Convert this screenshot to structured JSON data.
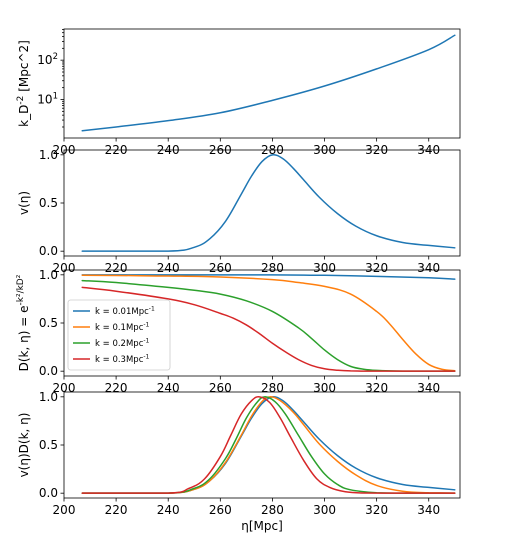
{
  "chart_data": [
    {
      "type": "line",
      "ylabel": "k_D^{-2} [Mpc^2]",
      "ylog": true,
      "xlim": [
        200,
        352
      ],
      "ylim": [
        1.05,
        620
      ],
      "xticks": [
        200,
        220,
        240,
        260,
        280,
        300,
        320,
        340
      ],
      "xtick_labels": [
        "200",
        "220",
        "240",
        "260",
        "280",
        "300",
        "320",
        "340"
      ],
      "yticks": [
        10,
        100
      ],
      "ytick_labels": [
        "10^1",
        "10^2"
      ],
      "grid": false,
      "series": [
        {
          "color": "#1f77b4",
          "x": [
            207,
            220,
            240,
            260,
            280,
            300,
            320,
            340,
            350
          ],
          "y": [
            1.6,
            2.0,
            2.9,
            4.6,
            9.5,
            22,
            60,
            185,
            430
          ]
        }
      ]
    },
    {
      "type": "line",
      "ylabel": "v(η)",
      "xlim": [
        200,
        352
      ],
      "ylim": [
        -0.05,
        1.05
      ],
      "xticks": [
        200,
        220,
        240,
        260,
        280,
        300,
        320,
        340
      ],
      "xtick_labels": [
        "200",
        "220",
        "240",
        "260",
        "280",
        "300",
        "320",
        "340"
      ],
      "yticks": [
        0.0,
        0.5,
        1.0
      ],
      "ytick_labels": [
        "0.0",
        "0.5",
        "1.0"
      ],
      "grid": false,
      "series": [
        {
          "color": "#1f77b4",
          "x": [
            207,
            240,
            250,
            256,
            262,
            268,
            272,
            276,
            280,
            284,
            288,
            292,
            298,
            305,
            312,
            320,
            330,
            340,
            350
          ],
          "y": [
            0.0,
            0.0,
            0.04,
            0.13,
            0.31,
            0.59,
            0.78,
            0.93,
            1.0,
            0.96,
            0.86,
            0.74,
            0.56,
            0.39,
            0.26,
            0.16,
            0.09,
            0.06,
            0.035
          ]
        }
      ]
    },
    {
      "type": "line",
      "ylabel": "D(k, η) = e^{-k²/k_D²}",
      "xlim": [
        200,
        352
      ],
      "ylim": [
        -0.05,
        1.05
      ],
      "xticks": [
        200,
        220,
        240,
        260,
        280,
        300,
        320,
        340
      ],
      "xtick_labels": [
        "200",
        "220",
        "240",
        "260",
        "280",
        "300",
        "320",
        "340"
      ],
      "yticks": [
        0.0,
        0.5,
        1.0
      ],
      "ytick_labels": [
        "0.0",
        "0.5",
        "1.0"
      ],
      "grid": false,
      "legend": "center-left",
      "series": [
        {
          "name": "k = 0.01Mpc^{-1}",
          "color": "#1f77b4",
          "x": [
            207,
            240,
            280,
            300,
            320,
            340,
            350
          ],
          "y": [
            0.9999,
            0.9997,
            0.999,
            0.995,
            0.984,
            0.97,
            0.955
          ]
        },
        {
          "name": "k = 0.1Mpc^{-1}",
          "color": "#ff7f0e",
          "x": [
            207,
            220,
            240,
            260,
            280,
            290,
            300,
            310,
            320,
            325,
            330,
            335,
            340,
            345,
            350
          ],
          "y": [
            0.995,
            0.993,
            0.988,
            0.978,
            0.95,
            0.92,
            0.88,
            0.8,
            0.62,
            0.49,
            0.33,
            0.18,
            0.07,
            0.02,
            0.005
          ]
        },
        {
          "name": "k = 0.2Mpc^{-1}",
          "color": "#2ca02c",
          "x": [
            207,
            220,
            240,
            250,
            260,
            270,
            280,
            290,
            295,
            300,
            305,
            310,
            315,
            320,
            330,
            340,
            350
          ],
          "y": [
            0.94,
            0.92,
            0.87,
            0.84,
            0.8,
            0.73,
            0.62,
            0.45,
            0.34,
            0.22,
            0.12,
            0.05,
            0.02,
            0.008,
            0.001,
            0.0,
            0.0
          ]
        },
        {
          "name": "k = 0.3Mpc^{-1}",
          "color": "#d62728",
          "x": [
            207,
            220,
            240,
            250,
            260,
            265,
            270,
            275,
            280,
            285,
            290,
            295,
            300,
            305,
            310,
            320,
            350
          ],
          "y": [
            0.87,
            0.83,
            0.75,
            0.69,
            0.6,
            0.55,
            0.48,
            0.39,
            0.29,
            0.2,
            0.12,
            0.06,
            0.025,
            0.01,
            0.003,
            0.0,
            0.0
          ]
        }
      ]
    },
    {
      "type": "line",
      "ylabel": "v(η)D(k, η)",
      "xlabel": "η[Mpc]",
      "xlim": [
        200,
        352
      ],
      "ylim": [
        -0.05,
        1.05
      ],
      "xticks": [
        200,
        220,
        240,
        260,
        280,
        300,
        320,
        340
      ],
      "xtick_labels": [
        "200",
        "220",
        "240",
        "260",
        "280",
        "300",
        "320",
        "340"
      ],
      "yticks": [
        0.0,
        0.5,
        1.0
      ],
      "ytick_labels": [
        "0.0",
        "0.5",
        "1.0"
      ],
      "grid": false,
      "series": [
        {
          "color": "#1f77b4",
          "x": [
            207,
            240,
            250,
            256,
            262,
            268,
            272,
            276,
            280,
            284,
            288,
            292,
            298,
            305,
            312,
            320,
            330,
            340,
            350
          ],
          "y": [
            0.0,
            0.0,
            0.04,
            0.13,
            0.31,
            0.59,
            0.78,
            0.93,
            1.0,
            0.96,
            0.86,
            0.74,
            0.56,
            0.39,
            0.26,
            0.16,
            0.09,
            0.06,
            0.035
          ]
        },
        {
          "color": "#ff7f0e",
          "x": [
            207,
            240,
            250,
            256,
            262,
            268,
            272,
            276,
            279,
            283,
            288,
            292,
            298,
            305,
            312,
            320,
            330,
            340,
            350
          ],
          "y": [
            0.0,
            0.0,
            0.04,
            0.13,
            0.32,
            0.6,
            0.8,
            0.95,
            1.0,
            0.96,
            0.84,
            0.71,
            0.51,
            0.33,
            0.19,
            0.08,
            0.02,
            0.004,
            0.0
          ]
        },
        {
          "color": "#2ca02c",
          "x": [
            207,
            240,
            250,
            256,
            262,
            266,
            270,
            274,
            277,
            281,
            285,
            290,
            295,
            300,
            305,
            310,
            320,
            330,
            350
          ],
          "y": [
            0.0,
            0.0,
            0.05,
            0.15,
            0.36,
            0.56,
            0.78,
            0.94,
            1.0,
            0.95,
            0.82,
            0.6,
            0.38,
            0.2,
            0.09,
            0.035,
            0.004,
            0.0,
            0.0
          ]
        },
        {
          "color": "#d62728",
          "x": [
            207,
            240,
            248,
            254,
            260,
            264,
            268,
            272,
            275,
            279,
            283,
            287,
            292,
            297,
            302,
            308,
            315,
            330,
            350
          ],
          "y": [
            0.0,
            0.0,
            0.05,
            0.15,
            0.38,
            0.6,
            0.82,
            0.96,
            1.0,
            0.94,
            0.78,
            0.58,
            0.34,
            0.15,
            0.06,
            0.015,
            0.002,
            0.0,
            0.0
          ]
        }
      ]
    }
  ]
}
